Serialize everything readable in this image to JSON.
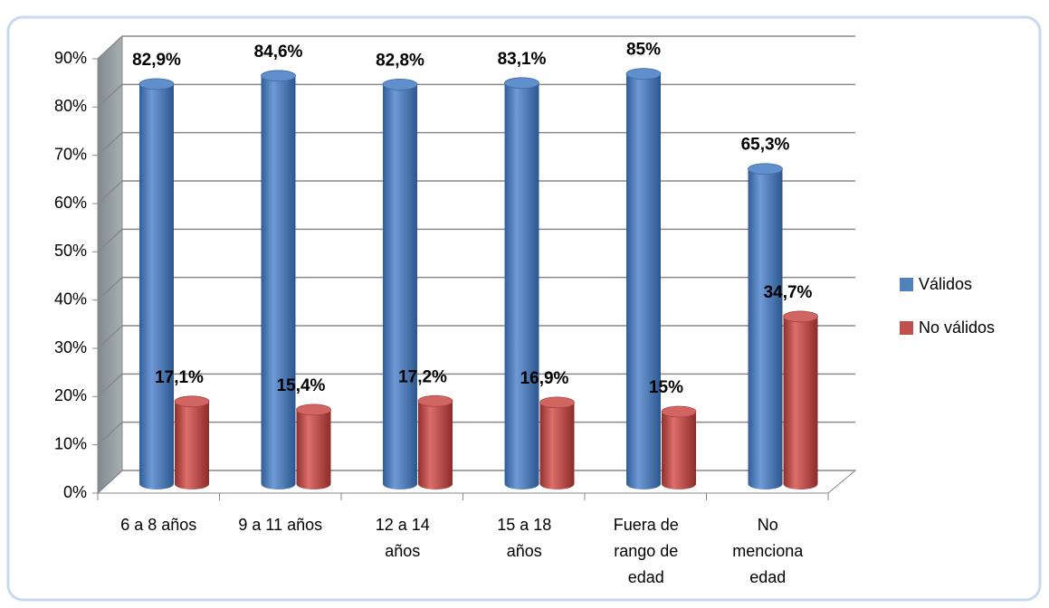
{
  "chart_data": {
    "type": "bar3d",
    "categories": [
      "6 a 8 años",
      "9 a 11 años",
      "12 a 14 años",
      "15 a 18 años",
      "Fuera de rango de edad",
      "No menciona edad"
    ],
    "series": [
      {
        "name": "Válidos",
        "color": "#4f81bd",
        "values": [
          82.9,
          84.6,
          82.8,
          83.1,
          85,
          65.3
        ],
        "value_labels": [
          "82,9%",
          "84,6%",
          "82,8%",
          "83,1%",
          "85%",
          "65,3%"
        ]
      },
      {
        "name": "No válidos",
        "color": "#c0504d",
        "values": [
          17.1,
          15.4,
          17.2,
          16.9,
          15,
          34.7
        ],
        "value_labels": [
          "17,1%",
          "15,4%",
          "17,2%",
          "16,9%",
          "15%",
          "34,7%"
        ]
      }
    ],
    "ylim": [
      0,
      90
    ],
    "yticks": [
      {
        "value": 0,
        "label": "0%"
      },
      {
        "value": 10,
        "label": "10%"
      },
      {
        "value": 20,
        "label": "20%"
      },
      {
        "value": 30,
        "label": "30%"
      },
      {
        "value": 40,
        "label": "40%"
      },
      {
        "value": 50,
        "label": "50%"
      },
      {
        "value": 60,
        "label": "60%"
      },
      {
        "value": 70,
        "label": "70%"
      },
      {
        "value": 80,
        "label": "80%"
      },
      {
        "value": 90,
        "label": "90%"
      }
    ],
    "grid": true,
    "legend": "right"
  }
}
